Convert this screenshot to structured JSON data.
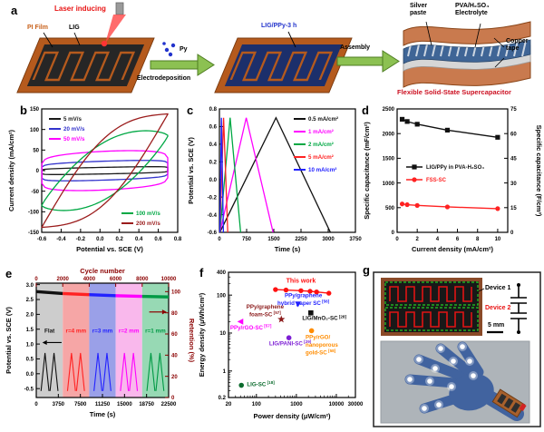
{
  "panel_labels": {
    "a": "a",
    "b": "b",
    "c": "c",
    "d": "d",
    "e": "e",
    "f": "f",
    "g": "g"
  },
  "panel_a": {
    "laser": "Laser inducing",
    "pi_film": "PI Film",
    "lig": "LIG",
    "py": "Py",
    "electrodeposition": "Electrodeposition",
    "lig_ppy": "LIG/PPy-3 h",
    "assembly": "Assembly",
    "silver_paste": "Silver paste",
    "electrolyte": "PVA/H₂SO₄ Electrolyte",
    "copper_tape": "Copper tape",
    "device_name": "Flexible Solid-State Supercapacitor"
  },
  "panel_g": {
    "device1": "Device 1",
    "device2": "Device 2",
    "scale_bar": "5 mm"
  },
  "chart_data": [
    {
      "panel": "b",
      "type": "line",
      "xlabel": "Potential vs. SCE (V)",
      "ylabel": "Current density (mA/cm²)",
      "xlim": [
        -0.6,
        0.8
      ],
      "ylim": [
        -150,
        150
      ],
      "xticks": [
        -0.6,
        -0.4,
        -0.2,
        0,
        0.2,
        0.4,
        0.6,
        0.8
      ],
      "yticks": [
        -150,
        -100,
        -50,
        0,
        50,
        100,
        150
      ],
      "v_window": [
        -0.6,
        0.7
      ],
      "series": [
        {
          "name": "5 mV/s",
          "color": "#1a1a1a",
          "half_height": 8,
          "tilt": 3,
          "shape": 0.1
        },
        {
          "name": "20 mV/s",
          "color": "#3333cc",
          "half_height": 23,
          "tilt": 5,
          "shape": 0.1
        },
        {
          "name": "50 mV/s",
          "color": "#ff00ff",
          "half_height": 47,
          "tilt": 7,
          "shape": 0.13
        },
        {
          "name": "100 mV/s",
          "color": "#00a844",
          "half_height": 70,
          "tilt": 85,
          "shape": 0.8
        },
        {
          "name": "200 mV/s",
          "color": "#9b1c1c",
          "half_height": 80,
          "tilt": 138,
          "shape": 1.0
        }
      ],
      "legend_topleft": [
        0,
        1,
        2
      ],
      "legend_bottomright": [
        3,
        4
      ]
    },
    {
      "panel": "c",
      "type": "line",
      "xlabel": "Time (s)",
      "ylabel": "Potential vs. SCE (V)",
      "xlim": [
        0,
        3750
      ],
      "ylim": [
        -0.6,
        0.8
      ],
      "xticks": [
        0,
        750,
        1500,
        2250,
        3000,
        3750
      ],
      "yticks": [
        -0.6,
        -0.4,
        -0.2,
        0,
        0.2,
        0.4,
        0.6,
        0.8
      ],
      "v_min": -0.6,
      "v_max": 0.7,
      "series": [
        {
          "name": "0.5 mA/cm²",
          "color": "#111111",
          "t_peak": 1560,
          "t_end": 3060
        },
        {
          "name": "1 mA/cm²",
          "color": "#ff00ff",
          "t_peak": 740,
          "t_end": 1480
        },
        {
          "name": "2 mA/cm²",
          "color": "#00a844",
          "t_peak": 295,
          "t_end": 585
        },
        {
          "name": "5 mA/cm²",
          "color": "#ff2222",
          "t_peak": 115,
          "t_end": 230
        },
        {
          "name": "10 mA/cm²",
          "color": "#2222ff",
          "t_peak": 55,
          "t_end": 110
        }
      ]
    },
    {
      "panel": "d",
      "type": "scatter",
      "xlabel": "Current density (mA/cm²)",
      "ylabel": "Specific capacitance (mF/cm²)",
      "y2label": "Specific capacitance (F/cm³)",
      "xlim": [
        0,
        11
      ],
      "ylim": [
        0,
        2500
      ],
      "y2lim": [
        0,
        75
      ],
      "xticks": [
        0,
        2,
        4,
        6,
        8,
        10
      ],
      "yticks": [
        0,
        500,
        1000,
        1500,
        2000,
        2500
      ],
      "y2ticks": [
        0,
        15,
        30,
        45,
        60,
        75
      ],
      "x": [
        0.5,
        1,
        2,
        5,
        10
      ],
      "series": [
        {
          "name": "LIG/PPy in PVA-H₂SO₄",
          "color": "#111111",
          "marker": "square",
          "values": [
            2290,
            2245,
            2190,
            2070,
            1925
          ]
        },
        {
          "name": "FSS-SC",
          "color": "#ff2222",
          "marker": "circle",
          "values": [
            575,
            560,
            545,
            515,
            480
          ]
        }
      ]
    },
    {
      "panel": "e",
      "type": "line",
      "xlabel": "Time (s)",
      "ylabel": "Potential vs. SCE (V)",
      "top_label": "Cycle number",
      "right_label": "Retention (%)",
      "xlim": [
        0,
        22500
      ],
      "ylim": [
        -0.8,
        3.05
      ],
      "xticks": [
        0,
        3750,
        7500,
        11250,
        15000,
        18750,
        22500
      ],
      "yticks": [
        -0.5,
        0,
        0.5,
        1,
        1.5,
        2,
        2.5,
        3
      ],
      "top_ticks": [
        0,
        2000,
        4000,
        6000,
        8000,
        10000
      ],
      "cycles_max": 10000,
      "right_ticks": [
        0,
        20,
        40,
        60,
        80,
        100
      ],
      "right_lim": [
        0,
        108
      ],
      "axis2_color": "#8b0000",
      "pulse_vmin": -0.58,
      "pulse_vmax": 0.7,
      "regions": [
        {
          "label": "Flat",
          "label_color": "#111111",
          "fill": "#cdcdcd",
          "line": "#111111",
          "x": [
            0,
            4500
          ],
          "retention": [
            100,
            98.2
          ]
        },
        {
          "label": "r=4 mm",
          "label_color": "#ff2222",
          "fill": "#f6a6a6",
          "line": "#ff2222",
          "x": [
            4500,
            9000
          ],
          "retention": [
            98.2,
            97.1
          ]
        },
        {
          "label": "r=3 mm",
          "label_color": "#2222ff",
          "fill": "#9aa0e8",
          "line": "#2222ff",
          "x": [
            9000,
            13500
          ],
          "retention": [
            97.1,
            96.2
          ]
        },
        {
          "label": "r=2 mm",
          "label_color": "#ff00ff",
          "fill": "#f9b8ec",
          "line": "#ff00ff",
          "x": [
            13500,
            18000
          ],
          "retention": [
            96.2,
            95.5
          ]
        },
        {
          "label": "r=1 mm",
          "label_color": "#009944",
          "fill": "#97d9b4",
          "line": "#009944",
          "x": [
            18000,
            22500
          ],
          "retention": [
            95.5,
            95.0
          ]
        }
      ]
    },
    {
      "panel": "f",
      "type": "scatter",
      "xlabel": "Power density (μW/cm²)",
      "ylabel": "Energy density (μWh/cm²)",
      "xscale": "log",
      "yscale": "log",
      "xlim": [
        20,
        30000
      ],
      "ylim": [
        0.2,
        400
      ],
      "xticks": [
        20,
        100,
        1000,
        10000,
        30000
      ],
      "yticks": [
        0.2,
        1,
        10,
        100,
        400
      ],
      "this_work": {
        "label": "This work",
        "color": "#ff1111",
        "x": [
          300,
          550,
          1300,
          2200,
          3200,
          6500
        ],
        "y": [
          140,
          136,
          131,
          126,
          121,
          112
        ],
        "label_at": [
          1300,
          215
        ]
      },
      "points": [
        {
          "lines": [
            "PPy/graphene",
            "hybrid paper SC"
          ],
          "ref": "[56]",
          "color": "#2222ff",
          "marker": "triangle-down",
          "x": 1100,
          "y": 58,
          "label_at": [
            1500,
            88
          ],
          "anchor": "middle"
        },
        {
          "lines": [
            "LIG/MnO₂-SC"
          ],
          "ref": "[28]",
          "color": "#111111",
          "marker": "square",
          "x": 2300,
          "y": 34,
          "label_at": [
            5000,
            22
          ],
          "anchor": "middle"
        },
        {
          "lines": [
            "PPy/graphene",
            "foam-SC"
          ],
          "ref": "[57]",
          "color": "#8b1a1a",
          "marker": "star",
          "x": 420,
          "y": 23,
          "label_at": [
            165,
            44
          ],
          "anchor": "middle"
        },
        {
          "lines": [
            "PPy/rGO-SC"
          ],
          "ref": "[57]",
          "color": "#ff00ff",
          "marker": "triangle-left",
          "x": 40,
          "y": 20,
          "label_at": [
            22,
            12.5
          ],
          "anchor": "start"
        },
        {
          "lines": [
            "LIG/PANI-SC"
          ],
          "ref": "[29]",
          "color": "#7d1fd4",
          "marker": "circle",
          "x": 650,
          "y": 7.5,
          "label_at": [
            700,
            4.8
          ],
          "anchor": "middle"
        },
        {
          "lines": [
            "PPy/rGO/",
            "nanoporous",
            "gold-SC"
          ],
          "ref": "[58]",
          "color": "#ff8c00",
          "marker": "circle",
          "x": 2400,
          "y": 11.5,
          "label_at": [
            1700,
            7
          ],
          "anchor": "start"
        },
        {
          "lines": [
            "LIG-SC"
          ],
          "ref": "[18]",
          "color": "#0b6b2d",
          "marker": "circle",
          "x": 42,
          "y": 0.42,
          "label_at": [
            58,
            0.4
          ],
          "anchor": "start"
        }
      ]
    }
  ]
}
